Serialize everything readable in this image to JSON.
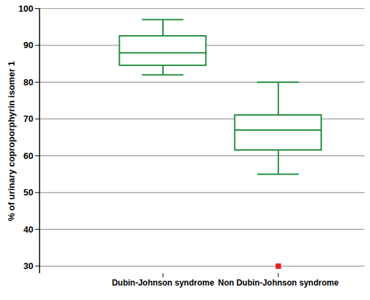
{
  "chart_data": {
    "type": "box",
    "ylabel": "% of urinary coproporphyrin isomer 1",
    "categories": [
      "Dubin-Johnson syndrome",
      "Non Dubin-Johnson syndrome"
    ],
    "boxes": [
      {
        "min": 82,
        "q1": 84.5,
        "median": 88,
        "q3": 92.5,
        "max": 97
      },
      {
        "min": 55,
        "q1": 61.5,
        "median": 67,
        "q3": 71,
        "max": 80
      }
    ],
    "outliers": {
      "values": [
        [],
        [
          30
        ]
      ],
      "color": "#e8202a",
      "marker": "square"
    },
    "color": "#1e8c3c",
    "ylim": [
      28,
      100
    ],
    "yticks": [
      30,
      40,
      50,
      60,
      70,
      80,
      90,
      100
    ],
    "grid": true
  }
}
